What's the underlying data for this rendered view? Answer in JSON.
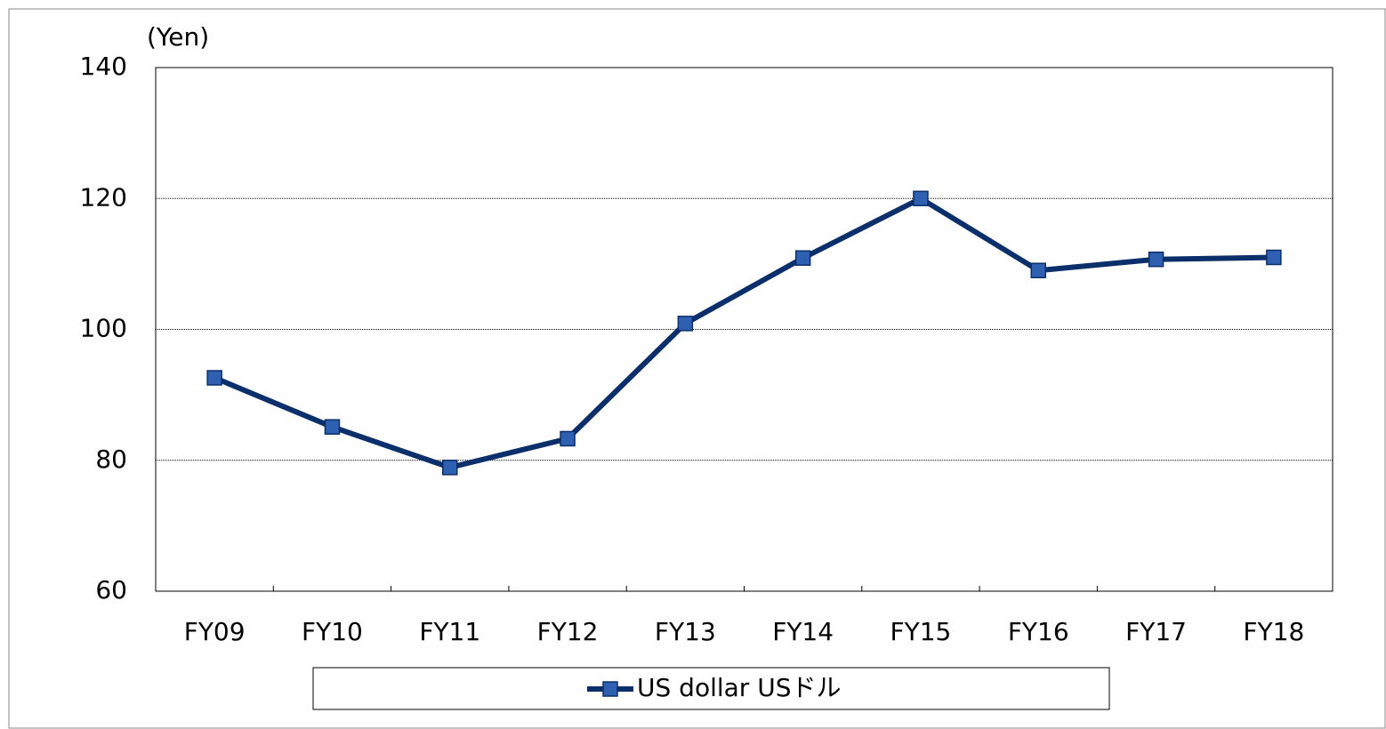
{
  "chart_data": {
    "type": "line",
    "y_axis_label": "(Yen)",
    "categories": [
      "FY09",
      "FY10",
      "FY11",
      "FY12",
      "FY13",
      "FY14",
      "FY15",
      "FY16",
      "FY17",
      "FY18"
    ],
    "series": [
      {
        "name": "US dollar USドル",
        "color": "#0b2f6b",
        "marker_color": "#2e5fb0",
        "values": [
          92.6,
          85.1,
          78.9,
          83.3,
          100.9,
          110.9,
          120.0,
          109.0,
          110.7,
          111.0
        ]
      }
    ],
    "ylim": [
      60,
      140
    ],
    "yticks": [
      60,
      80,
      100,
      120,
      140
    ],
    "grid": true,
    "legend": "bottom"
  }
}
